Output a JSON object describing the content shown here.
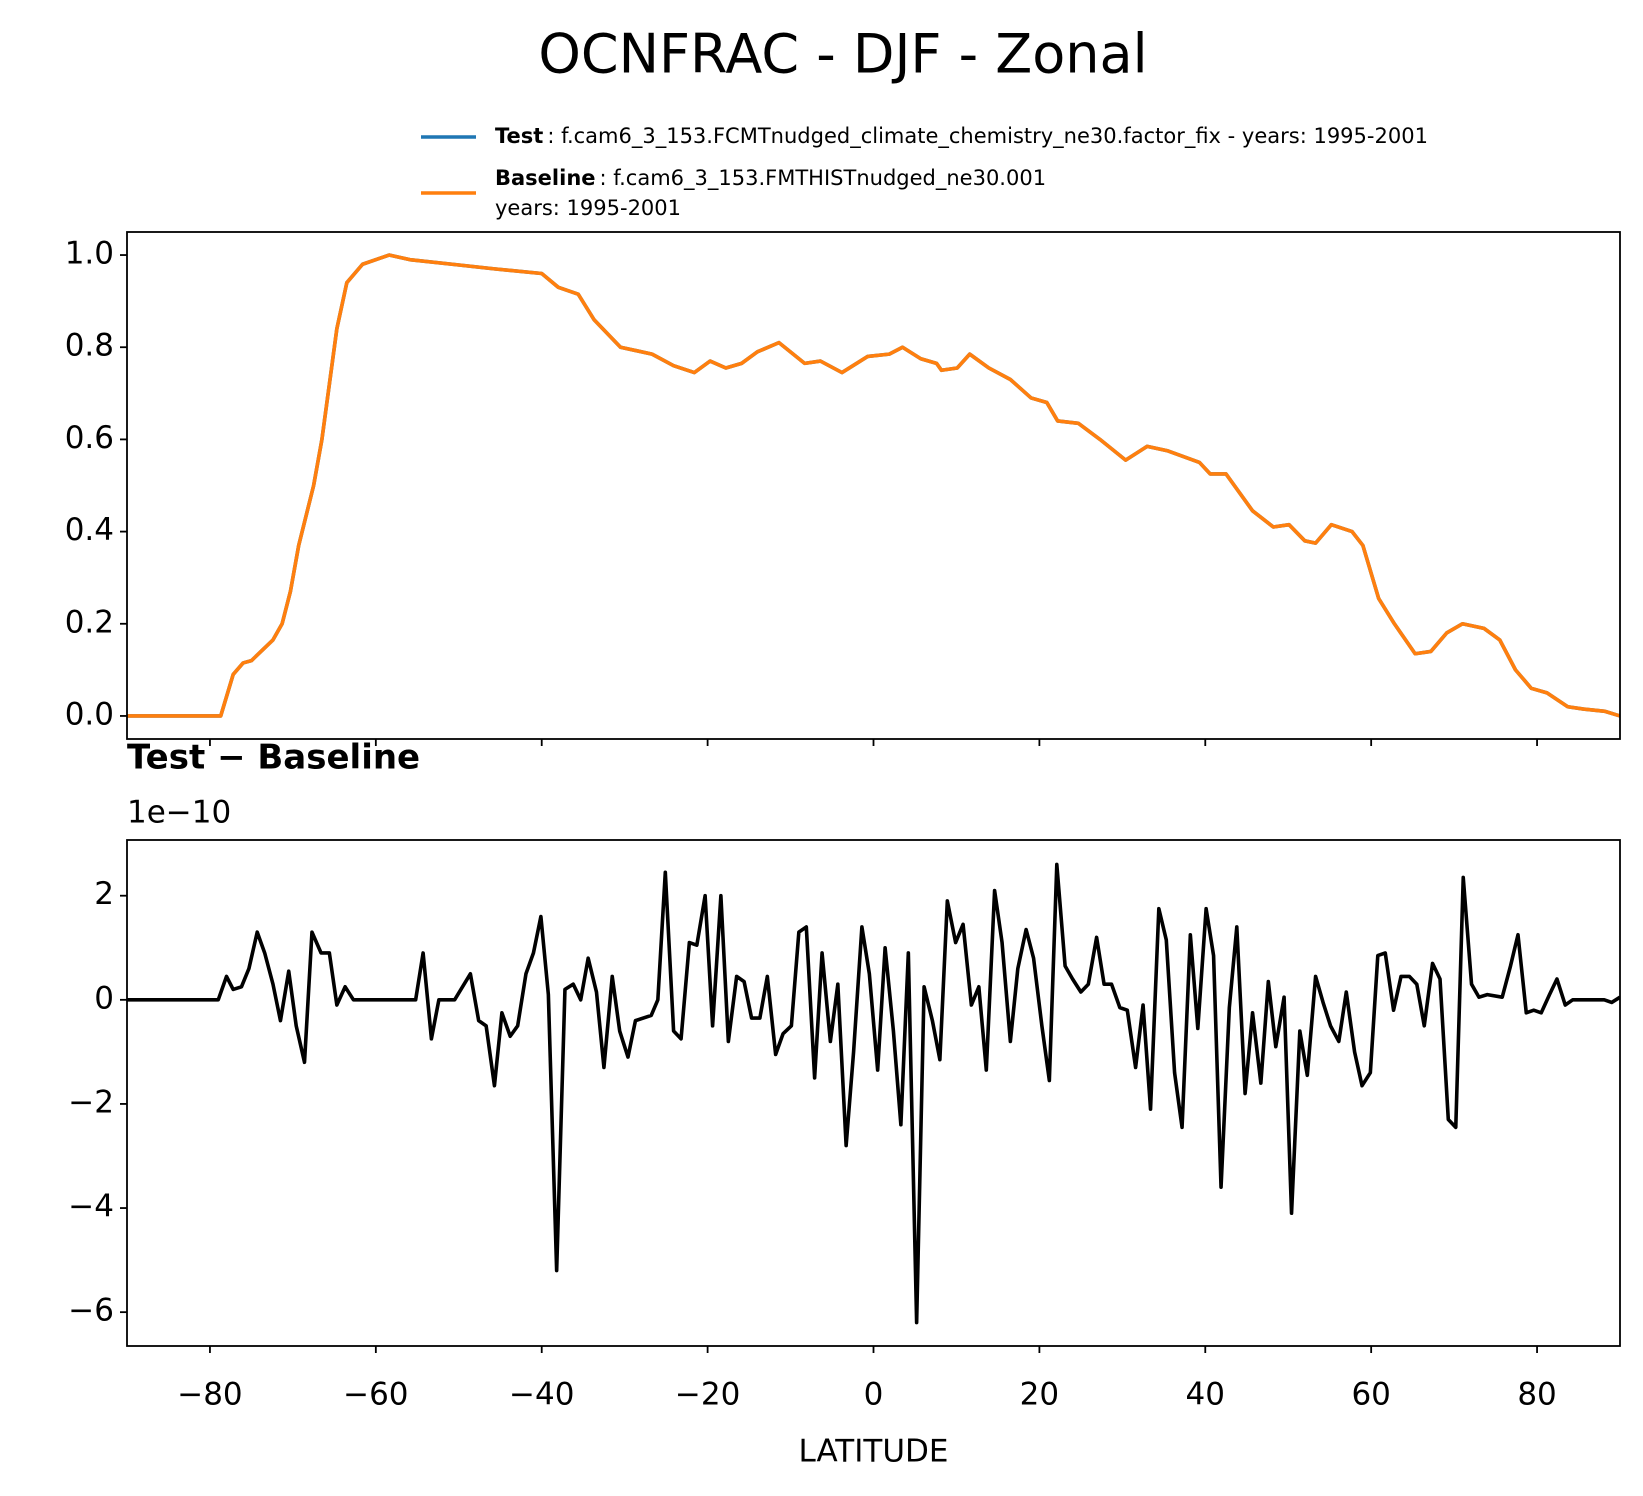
{
  "chart_data": [
    {
      "type": "line",
      "title": "OCNFRAC - DJF - Zonal",
      "x": [
        -90,
        -85,
        -80,
        -79,
        -78.7,
        -77.2,
        -76,
        -75,
        -72.4,
        -71.3,
        -70.3,
        -69.3,
        -67.5,
        -66.5,
        -64.7,
        -63.5,
        -61.6,
        -58.4,
        -55.9,
        -50.8,
        -45.7,
        -40,
        -38,
        -35.6,
        -33.7,
        -30.5,
        -26.7,
        -24.1,
        -21.6,
        -19.7,
        -17.8,
        -15.9,
        -14,
        -11.4,
        -8.3,
        -6.4,
        -3.8,
        -0.7,
        1.9,
        3.5,
        5.7,
        7.6,
        8.2,
        10.1,
        11.6,
        13.9,
        16.5,
        19,
        20.9,
        22.2,
        24.7,
        27.3,
        30.4,
        33,
        35.5,
        39.3,
        40.6,
        42.5,
        45.7,
        48.2,
        50.1,
        52,
        53.3,
        55.2,
        57.7,
        59,
        60.9,
        62.8,
        65.3,
        67.2,
        69.1,
        71,
        73.6,
        75.5,
        77.4,
        79.3,
        81.2,
        83.7,
        85.6,
        88.2,
        90
      ],
      "series": [
        {
          "name": "Test",
          "label": ": f.cam6_3_153.FCMTnudged_climate_chemistry_ne30.factor_fix - years: 1995-2001",
          "color": "#1f77b4",
          "values": [
            0,
            0,
            0,
            0,
            0,
            0.09,
            0.115,
            0.12,
            0.165,
            0.2,
            0.27,
            0.37,
            0.5,
            0.6,
            0.84,
            0.94,
            0.98,
            1.0,
            0.99,
            0.98,
            0.97,
            0.96,
            0.93,
            0.915,
            0.86,
            0.8,
            0.785,
            0.76,
            0.745,
            0.77,
            0.755,
            0.765,
            0.79,
            0.81,
            0.765,
            0.77,
            0.745,
            0.78,
            0.785,
            0.8,
            0.775,
            0.765,
            0.75,
            0.755,
            0.785,
            0.755,
            0.73,
            0.69,
            0.68,
            0.64,
            0.635,
            0.6,
            0.555,
            0.585,
            0.575,
            0.55,
            0.525,
            0.525,
            0.445,
            0.41,
            0.415,
            0.38,
            0.375,
            0.415,
            0.4,
            0.37,
            0.255,
            0.2,
            0.135,
            0.14,
            0.18,
            0.2,
            0.19,
            0.165,
            0.1,
            0.06,
            0.05,
            0.02,
            0.015,
            0.01,
            0.0
          ]
        },
        {
          "name": "Baseline",
          "label_lines": [
            ": f.cam6_3_153.FMTHISTnudged_ne30.001",
            "years: 1995-2001"
          ],
          "color": "#ff7f0e",
          "values": [
            0,
            0,
            0,
            0,
            0,
            0.09,
            0.115,
            0.12,
            0.165,
            0.2,
            0.27,
            0.37,
            0.5,
            0.6,
            0.84,
            0.94,
            0.98,
            1.0,
            0.99,
            0.98,
            0.97,
            0.96,
            0.93,
            0.915,
            0.86,
            0.8,
            0.785,
            0.76,
            0.745,
            0.77,
            0.755,
            0.765,
            0.79,
            0.81,
            0.765,
            0.77,
            0.745,
            0.78,
            0.785,
            0.8,
            0.775,
            0.765,
            0.75,
            0.755,
            0.785,
            0.755,
            0.73,
            0.69,
            0.68,
            0.64,
            0.635,
            0.6,
            0.555,
            0.585,
            0.575,
            0.55,
            0.525,
            0.525,
            0.445,
            0.41,
            0.415,
            0.38,
            0.375,
            0.415,
            0.4,
            0.37,
            0.255,
            0.2,
            0.135,
            0.14,
            0.18,
            0.2,
            0.19,
            0.165,
            0.1,
            0.06,
            0.05,
            0.02,
            0.015,
            0.01,
            0.0
          ]
        }
      ],
      "xlim": [
        -90,
        90
      ],
      "xticks": [
        -80,
        -60,
        -40,
        -20,
        0,
        20,
        40,
        60,
        80
      ],
      "show_xtick_labels": false,
      "ylim": [
        -0.05,
        1.05
      ],
      "yticks": [
        {
          "value": 0,
          "label": "0.0"
        },
        0.2,
        0.4,
        0.6,
        0.8,
        {
          "value": 1,
          "label": "1.0"
        }
      ]
    },
    {
      "type": "line",
      "title": "Test − Baseline",
      "offset_label": "1e−10",
      "xlabel": "LATITUDE",
      "x": [
        -90,
        -85,
        -80,
        -79,
        -78,
        -77.2,
        -76.2,
        -75.3,
        -74.3,
        -73.4,
        -72.4,
        -71.5,
        -70.5,
        -69.6,
        -68.6,
        -67.7,
        -66.6,
        -65.6,
        -64.7,
        -63.7,
        -62.7,
        -55.2,
        -54.3,
        -53.3,
        -52.4,
        -50.5,
        -48.6,
        -47.6,
        -46.7,
        -45.7,
        -44.8,
        -43.8,
        -42.9,
        -41.9,
        -41,
        -40.1,
        -39.2,
        -38.2,
        -37.2,
        -36.2,
        -35.3,
        -34.4,
        -33.4,
        -32.5,
        -31.5,
        -30.6,
        -29.6,
        -28.7,
        -26.8,
        -26,
        -25.1,
        -24.1,
        -23.2,
        -22.2,
        -21.3,
        -20.3,
        -19.4,
        -18.4,
        -17.5,
        -16.5,
        -15.6,
        -14.7,
        -13.7,
        -12.8,
        -11.8,
        -10.9,
        -9.9,
        -9,
        -8.1,
        -7.1,
        -6.2,
        -5.2,
        -4.3,
        -3.3,
        -2.4,
        -1.4,
        -0.5,
        0.5,
        1.4,
        2.4,
        3.3,
        4.2,
        5.2,
        6.1,
        7.1,
        8,
        8.9,
        9.9,
        10.8,
        11.8,
        12.7,
        13.6,
        14.6,
        15.5,
        16.5,
        17.4,
        18.4,
        19.3,
        20.3,
        21.2,
        22.1,
        23.1,
        24,
        25,
        25.9,
        26.9,
        27.8,
        28.7,
        29.7,
        30.6,
        31.6,
        32.5,
        33.4,
        34.4,
        35.3,
        36.3,
        37.2,
        38.2,
        39.1,
        40.1,
        41,
        41.9,
        42.9,
        43.8,
        44.8,
        45.7,
        46.7,
        47.6,
        48.5,
        49.5,
        50.4,
        51.4,
        52.3,
        53.3,
        54.2,
        55.1,
        56.1,
        57,
        58,
        58.9,
        59.9,
        60.8,
        61.7,
        62.7,
        63.6,
        64.6,
        65.5,
        66.4,
        67.4,
        68.3,
        69.3,
        70.2,
        71.1,
        72.1,
        73,
        74,
        75.8,
        76.8,
        77.7,
        78.7,
        79.6,
        80.5,
        81.5,
        82.4,
        83.4,
        84.3,
        88.1,
        89,
        90
      ],
      "series": [
        {
          "name": "Test − Baseline",
          "color": "#000000",
          "values": [
            0,
            0,
            0,
            0,
            0.45,
            0.2,
            0.25,
            0.6,
            1.3,
            0.9,
            0.3,
            -0.4,
            0.55,
            -0.5,
            -1.2,
            1.3,
            0.9,
            0.9,
            -0.1,
            0.25,
            0,
            0,
            0.9,
            -0.75,
            0,
            0,
            0.5,
            -0.4,
            -0.5,
            -1.65,
            -0.25,
            -0.7,
            -0.5,
            0.5,
            0.9,
            1.6,
            0.1,
            -5.2,
            0.2,
            0.3,
            0,
            0.8,
            0.15,
            -1.3,
            0.45,
            -0.6,
            -1.1,
            -0.4,
            -0.3,
            0,
            2.45,
            -0.6,
            -0.75,
            1.1,
            1.05,
            2.0,
            -0.5,
            2.0,
            -0.8,
            0.45,
            0.35,
            -0.35,
            -0.35,
            0.45,
            -1.05,
            -0.65,
            -0.5,
            1.3,
            1.4,
            -1.5,
            0.9,
            -0.8,
            0.3,
            -2.8,
            -1.0,
            1.4,
            0.5,
            -1.35,
            1.0,
            -0.6,
            -2.4,
            0.9,
            -6.2,
            0.25,
            -0.4,
            -1.15,
            1.9,
            1.1,
            1.45,
            -0.1,
            0.25,
            -1.35,
            2.1,
            1.1,
            -0.8,
            0.6,
            1.35,
            0.8,
            -0.5,
            -1.55,
            2.6,
            0.65,
            0.4,
            0.15,
            0.3,
            1.2,
            0.3,
            0.3,
            -0.15,
            -0.2,
            -1.3,
            -0.1,
            -2.1,
            1.75,
            1.15,
            -1.4,
            -2.45,
            1.25,
            -0.55,
            1.75,
            0.85,
            -3.6,
            -0.15,
            1.4,
            -1.8,
            -0.25,
            -1.6,
            0.35,
            -0.9,
            0.05,
            -4.1,
            -0.6,
            -1.45,
            0.45,
            -0.05,
            -0.5,
            -0.8,
            0.15,
            -1.0,
            -1.65,
            -1.4,
            0.85,
            0.9,
            -0.2,
            0.45,
            0.45,
            0.3,
            -0.5,
            0.7,
            0.4,
            -2.3,
            -2.45,
            2.35,
            0.3,
            0.05,
            0.1,
            0.05,
            0.65,
            1.25,
            -0.25,
            -0.2,
            -0.25,
            0.1,
            0.4,
            -0.1,
            0,
            0,
            -0.05,
            0.05
          ]
        }
      ],
      "xlim": [
        -90,
        90
      ],
      "xticks": [
        {
          "value": -80,
          "label": "−80"
        },
        {
          "value": -60,
          "label": "−60"
        },
        {
          "value": -40,
          "label": "−40"
        },
        {
          "value": -20,
          "label": "−20"
        },
        0,
        20,
        40,
        60,
        80
      ],
      "show_xtick_labels": true,
      "ylim": [
        -6.65,
        3.07
      ],
      "yticks": [
        {
          "value": -6,
          "label": "−6"
        },
        {
          "value": -4,
          "label": "−4"
        },
        {
          "value": -2,
          "label": "−2"
        },
        0,
        2
      ]
    }
  ]
}
